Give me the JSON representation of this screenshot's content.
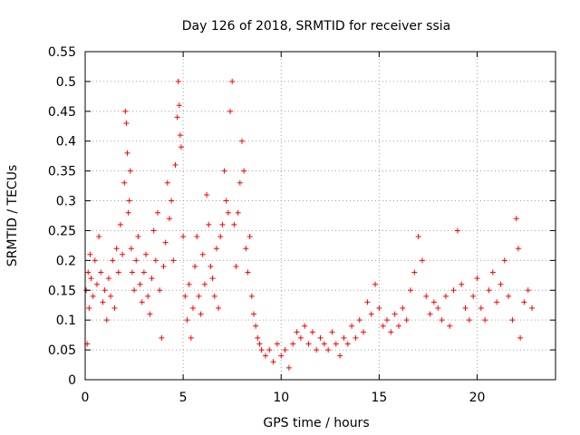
{
  "chart_data": {
    "type": "scatter",
    "title": "Day 126 of 2018, SRMTID for receiver ssia",
    "xlabel": "GPS time / hours",
    "ylabel": "SRMTID / TECUs",
    "xlim": [
      0,
      24
    ],
    "ylim": [
      0,
      0.55
    ],
    "x_ticks": [
      0,
      5,
      10,
      15,
      20
    ],
    "x_tick_labels": [
      "0",
      "5",
      "10",
      "15",
      "20"
    ],
    "y_ticks": [
      0,
      0.05,
      0.1,
      0.15,
      0.2,
      0.25,
      0.3,
      0.35,
      0.4,
      0.45,
      0.5,
      0.55
    ],
    "y_tick_labels": [
      "0",
      "0.05",
      "0.1",
      "0.15",
      "0.2",
      "0.25",
      "0.3",
      "0.35",
      "0.4",
      "0.45",
      "0.5",
      "0.55"
    ],
    "grid": true,
    "marker": "plus",
    "color": "#ff0000",
    "series": [
      {
        "name": "SRMTID",
        "points": [
          [
            0.05,
            0.15
          ],
          [
            0.1,
            0.06
          ],
          [
            0.15,
            0.18
          ],
          [
            0.2,
            0.12
          ],
          [
            0.25,
            0.21
          ],
          [
            0.3,
            0.17
          ],
          [
            0.4,
            0.14
          ],
          [
            0.5,
            0.2
          ],
          [
            0.6,
            0.16
          ],
          [
            0.7,
            0.24
          ],
          [
            0.8,
            0.18
          ],
          [
            0.9,
            0.13
          ],
          [
            1.0,
            0.15
          ],
          [
            1.1,
            0.1
          ],
          [
            1.2,
            0.17
          ],
          [
            1.3,
            0.14
          ],
          [
            1.4,
            0.2
          ],
          [
            1.5,
            0.12
          ],
          [
            1.6,
            0.22
          ],
          [
            1.7,
            0.18
          ],
          [
            1.8,
            0.26
          ],
          [
            1.9,
            0.21
          ],
          [
            2.0,
            0.33
          ],
          [
            2.05,
            0.45
          ],
          [
            2.1,
            0.43
          ],
          [
            2.15,
            0.38
          ],
          [
            2.2,
            0.28
          ],
          [
            2.25,
            0.3
          ],
          [
            2.3,
            0.35
          ],
          [
            2.35,
            0.22
          ],
          [
            2.4,
            0.18
          ],
          [
            2.5,
            0.15
          ],
          [
            2.6,
            0.2
          ],
          [
            2.7,
            0.24
          ],
          [
            2.8,
            0.16
          ],
          [
            2.9,
            0.13
          ],
          [
            3.0,
            0.18
          ],
          [
            3.1,
            0.21
          ],
          [
            3.2,
            0.14
          ],
          [
            3.3,
            0.11
          ],
          [
            3.4,
            0.17
          ],
          [
            3.5,
            0.25
          ],
          [
            3.6,
            0.2
          ],
          [
            3.7,
            0.28
          ],
          [
            3.8,
            0.15
          ],
          [
            3.9,
            0.07
          ],
          [
            4.0,
            0.19
          ],
          [
            4.1,
            0.23
          ],
          [
            4.2,
            0.33
          ],
          [
            4.3,
            0.27
          ],
          [
            4.4,
            0.3
          ],
          [
            4.5,
            0.2
          ],
          [
            4.6,
            0.36
          ],
          [
            4.7,
            0.44
          ],
          [
            4.75,
            0.5
          ],
          [
            4.8,
            0.46
          ],
          [
            4.85,
            0.41
          ],
          [
            4.9,
            0.39
          ],
          [
            5.0,
            0.24
          ],
          [
            5.1,
            0.14
          ],
          [
            5.2,
            0.1
          ],
          [
            5.3,
            0.16
          ],
          [
            5.4,
            0.07
          ],
          [
            5.5,
            0.12
          ],
          [
            5.6,
            0.19
          ],
          [
            5.7,
            0.24
          ],
          [
            5.8,
            0.14
          ],
          [
            5.9,
            0.11
          ],
          [
            6.0,
            0.21
          ],
          [
            6.1,
            0.16
          ],
          [
            6.2,
            0.31
          ],
          [
            6.3,
            0.26
          ],
          [
            6.4,
            0.19
          ],
          [
            6.5,
            0.17
          ],
          [
            6.6,
            0.14
          ],
          [
            6.7,
            0.22
          ],
          [
            6.8,
            0.12
          ],
          [
            6.9,
            0.24
          ],
          [
            7.0,
            0.26
          ],
          [
            7.1,
            0.35
          ],
          [
            7.2,
            0.3
          ],
          [
            7.3,
            0.28
          ],
          [
            7.4,
            0.45
          ],
          [
            7.5,
            0.5
          ],
          [
            7.6,
            0.26
          ],
          [
            7.7,
            0.19
          ],
          [
            7.8,
            0.28
          ],
          [
            7.9,
            0.33
          ],
          [
            8.0,
            0.4
          ],
          [
            8.1,
            0.35
          ],
          [
            8.2,
            0.22
          ],
          [
            8.3,
            0.18
          ],
          [
            8.4,
            0.24
          ],
          [
            8.5,
            0.14
          ],
          [
            8.6,
            0.11
          ],
          [
            8.7,
            0.09
          ],
          [
            8.8,
            0.07
          ],
          [
            8.9,
            0.06
          ],
          [
            9.0,
            0.05
          ],
          [
            9.2,
            0.04
          ],
          [
            9.4,
            0.05
          ],
          [
            9.6,
            0.03
          ],
          [
            9.8,
            0.06
          ],
          [
            10.0,
            0.04
          ],
          [
            10.2,
            0.05
          ],
          [
            10.4,
            0.02
          ],
          [
            10.6,
            0.06
          ],
          [
            10.8,
            0.08
          ],
          [
            11.0,
            0.07
          ],
          [
            11.2,
            0.09
          ],
          [
            11.4,
            0.06
          ],
          [
            11.6,
            0.08
          ],
          [
            11.8,
            0.05
          ],
          [
            12.0,
            0.07
          ],
          [
            12.2,
            0.06
          ],
          [
            12.4,
            0.05
          ],
          [
            12.6,
            0.08
          ],
          [
            12.8,
            0.06
          ],
          [
            13.0,
            0.04
          ],
          [
            13.2,
            0.07
          ],
          [
            13.4,
            0.06
          ],
          [
            13.6,
            0.09
          ],
          [
            13.8,
            0.07
          ],
          [
            14.0,
            0.1
          ],
          [
            14.2,
            0.08
          ],
          [
            14.4,
            0.13
          ],
          [
            14.6,
            0.11
          ],
          [
            14.8,
            0.16
          ],
          [
            15.0,
            0.12
          ],
          [
            15.2,
            0.09
          ],
          [
            15.4,
            0.1
          ],
          [
            15.6,
            0.08
          ],
          [
            15.8,
            0.11
          ],
          [
            16.0,
            0.09
          ],
          [
            16.2,
            0.12
          ],
          [
            16.4,
            0.1
          ],
          [
            16.6,
            0.15
          ],
          [
            16.8,
            0.18
          ],
          [
            17.0,
            0.24
          ],
          [
            17.2,
            0.2
          ],
          [
            17.4,
            0.14
          ],
          [
            17.6,
            0.11
          ],
          [
            17.8,
            0.13
          ],
          [
            18.0,
            0.12
          ],
          [
            18.2,
            0.1
          ],
          [
            18.4,
            0.14
          ],
          [
            18.6,
            0.09
          ],
          [
            18.8,
            0.15
          ],
          [
            19.0,
            0.25
          ],
          [
            19.2,
            0.16
          ],
          [
            19.4,
            0.12
          ],
          [
            19.6,
            0.1
          ],
          [
            19.8,
            0.14
          ],
          [
            20.0,
            0.17
          ],
          [
            20.2,
            0.12
          ],
          [
            20.4,
            0.1
          ],
          [
            20.6,
            0.15
          ],
          [
            20.8,
            0.18
          ],
          [
            21.0,
            0.13
          ],
          [
            21.2,
            0.16
          ],
          [
            21.4,
            0.2
          ],
          [
            21.6,
            0.14
          ],
          [
            21.8,
            0.1
          ],
          [
            22.0,
            0.27
          ],
          [
            22.1,
            0.22
          ],
          [
            22.2,
            0.07
          ],
          [
            22.4,
            0.13
          ],
          [
            22.6,
            0.15
          ],
          [
            22.8,
            0.12
          ]
        ]
      }
    ]
  }
}
